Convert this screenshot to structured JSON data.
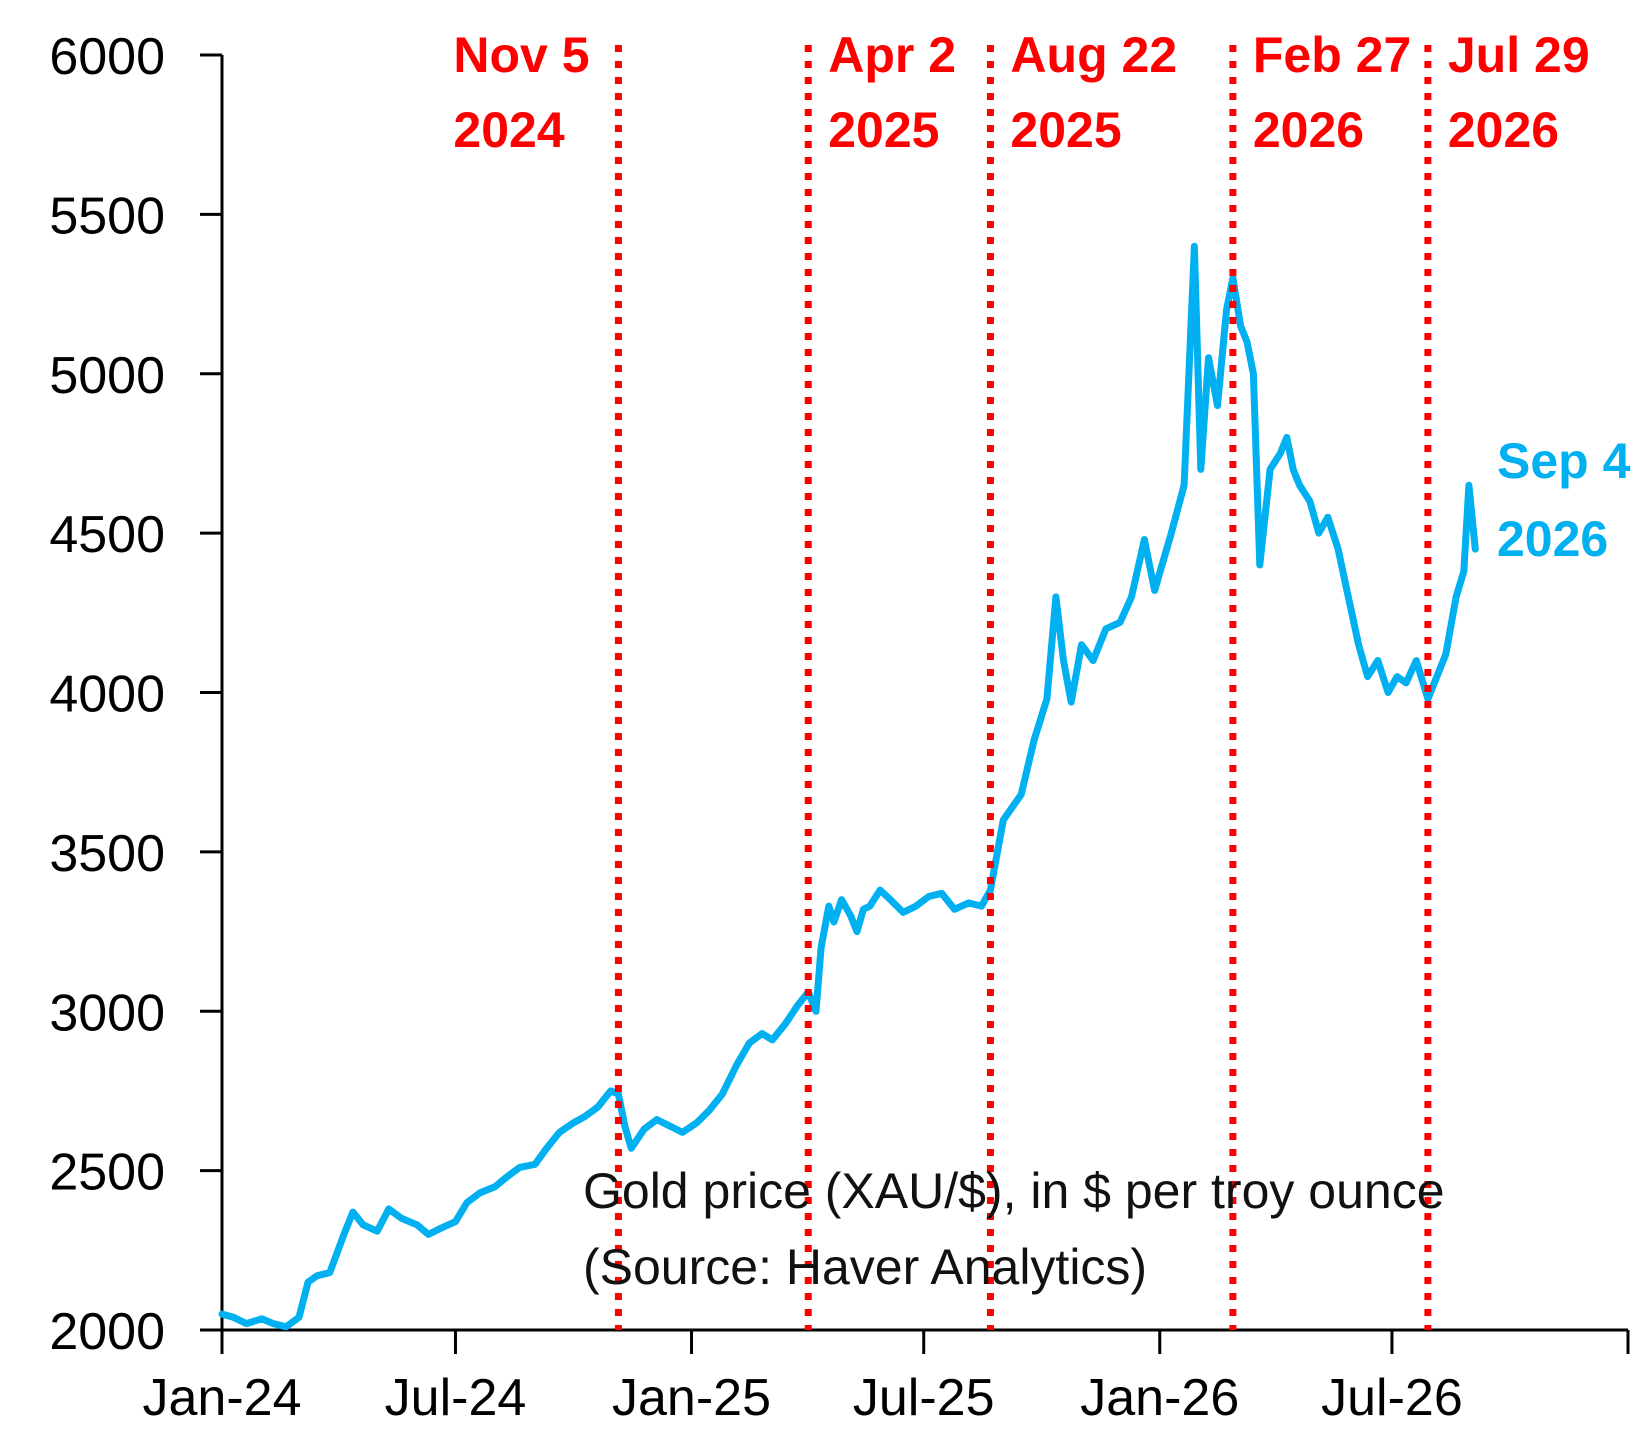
{
  "chart_data": {
    "type": "line",
    "title": "",
    "xlabel": "",
    "ylabel": "",
    "ylim": [
      2000,
      6000
    ],
    "y_ticks": [
      2000,
      2500,
      3000,
      3500,
      4000,
      4500,
      5000,
      5500,
      6000
    ],
    "y_tick_labels": [
      "2000",
      "2500",
      "3000",
      "3500",
      "4000",
      "4500",
      "5000",
      "5500",
      "6000"
    ],
    "xlim": [
      "2024-01",
      "2027-01"
    ],
    "x_ticks": [
      {
        "label": "Jan-24",
        "date": "2024-01"
      },
      {
        "label": "Jul-24",
        "date": "2024-07"
      },
      {
        "label": "Jan-25",
        "date": "2025-01"
      },
      {
        "label": "Jul-25",
        "date": "2025-07"
      },
      {
        "label": "Jan-26",
        "date": "2026-01"
      },
      {
        "label": "Jul-26",
        "date": "2026-07"
      }
    ],
    "grid": false,
    "note_lines": [
      "Gold price (XAU/$), in $ per troy ounce",
      "(Source: Haver Analytics)"
    ],
    "events": [
      {
        "date": "2024-11-05",
        "line1": "Nov 5",
        "line2": "2024"
      },
      {
        "date": "2025-04-02",
        "line1": "Apr 2",
        "line2": "2025"
      },
      {
        "date": "2025-08-22",
        "line1": "Aug 22",
        "line2": "2025"
      },
      {
        "date": "2026-02-27",
        "line1": "Feb 27",
        "line2": "2026"
      },
      {
        "date": "2026-07-29",
        "line1": "Jul 29",
        "line2": "2026"
      }
    ],
    "end_label": {
      "line1": "Sep 4",
      "line2": "2026"
    },
    "colors": {
      "series": "#00b0f0",
      "events": "#ff0000",
      "axis": "#000000"
    },
    "series": [
      {
        "x": [
          "2024-01-01",
          "2024-01-10",
          "2024-01-20",
          "2024-02-01",
          "2024-02-10",
          "2024-02-20",
          "2024-03-01",
          "2024-03-08",
          "2024-03-15",
          "2024-03-25",
          "2024-04-05",
          "2024-04-12",
          "2024-04-20",
          "2024-05-01",
          "2024-05-10",
          "2024-05-20",
          "2024-06-01",
          "2024-06-10",
          "2024-06-20",
          "2024-07-01",
          "2024-07-10",
          "2024-07-20",
          "2024-08-01",
          "2024-08-10",
          "2024-08-20",
          "2024-09-01",
          "2024-09-10",
          "2024-09-20",
          "2024-10-01",
          "2024-10-10",
          "2024-10-20",
          "2024-10-30",
          "2024-11-05",
          "2024-11-10",
          "2024-11-15",
          "2024-11-25",
          "2024-12-05",
          "2024-12-15",
          "2024-12-25",
          "2025-01-05",
          "2025-01-15",
          "2025-01-25",
          "2025-02-05",
          "2025-02-15",
          "2025-02-25",
          "2025-03-05",
          "2025-03-15",
          "2025-03-25",
          "2025-04-02",
          "2025-04-08",
          "2025-04-12",
          "2025-04-18",
          "2025-04-22",
          "2025-04-28",
          "2025-05-05",
          "2025-05-10",
          "2025-05-15",
          "2025-05-20",
          "2025-05-28",
          "2025-06-05",
          "2025-06-15",
          "2025-06-25",
          "2025-07-05",
          "2025-07-15",
          "2025-07-25",
          "2025-08-05",
          "2025-08-15",
          "2025-08-22",
          "2025-09-01",
          "2025-09-15",
          "2025-09-25",
          "2025-10-05",
          "2025-10-12",
          "2025-10-18",
          "2025-10-24",
          "2025-11-01",
          "2025-11-10",
          "2025-11-20",
          "2025-12-01",
          "2025-12-10",
          "2025-12-20",
          "2025-12-28",
          "2026-01-10",
          "2026-01-20",
          "2026-01-28",
          "2026-02-02",
          "2026-02-08",
          "2026-02-15",
          "2026-02-22",
          "2026-02-27",
          "2026-03-05",
          "2026-03-10",
          "2026-03-15",
          "2026-03-20",
          "2026-03-28",
          "2026-04-05",
          "2026-04-10",
          "2026-04-15",
          "2026-04-20",
          "2026-04-28",
          "2026-05-05",
          "2026-05-12",
          "2026-05-20",
          "2026-05-28",
          "2026-06-05",
          "2026-06-12",
          "2026-06-20",
          "2026-06-28",
          "2026-07-05",
          "2026-07-12",
          "2026-07-20",
          "2026-07-29",
          "2026-08-05",
          "2026-08-12",
          "2026-08-20",
          "2026-08-26",
          "2026-08-30",
          "2026-09-04"
        ],
        "values": [
          2050,
          2040,
          2020,
          2035,
          2020,
          2010,
          2040,
          2150,
          2170,
          2180,
          2300,
          2370,
          2330,
          2310,
          2380,
          2350,
          2330,
          2300,
          2320,
          2340,
          2400,
          2430,
          2450,
          2480,
          2510,
          2520,
          2570,
          2620,
          2650,
          2670,
          2700,
          2750,
          2740,
          2640,
          2570,
          2630,
          2660,
          2640,
          2620,
          2650,
          2690,
          2740,
          2830,
          2900,
          2930,
          2910,
          2960,
          3020,
          3060,
          3000,
          3200,
          3330,
          3280,
          3350,
          3300,
          3250,
          3320,
          3330,
          3380,
          3350,
          3310,
          3330,
          3360,
          3370,
          3320,
          3340,
          3330,
          3380,
          3600,
          3680,
          3850,
          3980,
          4300,
          4100,
          3970,
          4150,
          4100,
          4200,
          4220,
          4300,
          4480,
          4320,
          4500,
          4650,
          5400,
          4700,
          5050,
          4900,
          5200,
          5300,
          5150,
          5100,
          5000,
          4400,
          4700,
          4750,
          4800,
          4700,
          4650,
          4600,
          4500,
          4550,
          4450,
          4300,
          4150,
          4050,
          4100,
          4000,
          4050,
          4030,
          4100,
          3980,
          4050,
          4120,
          4300,
          4380,
          4650,
          4450
        ]
      }
    ]
  }
}
